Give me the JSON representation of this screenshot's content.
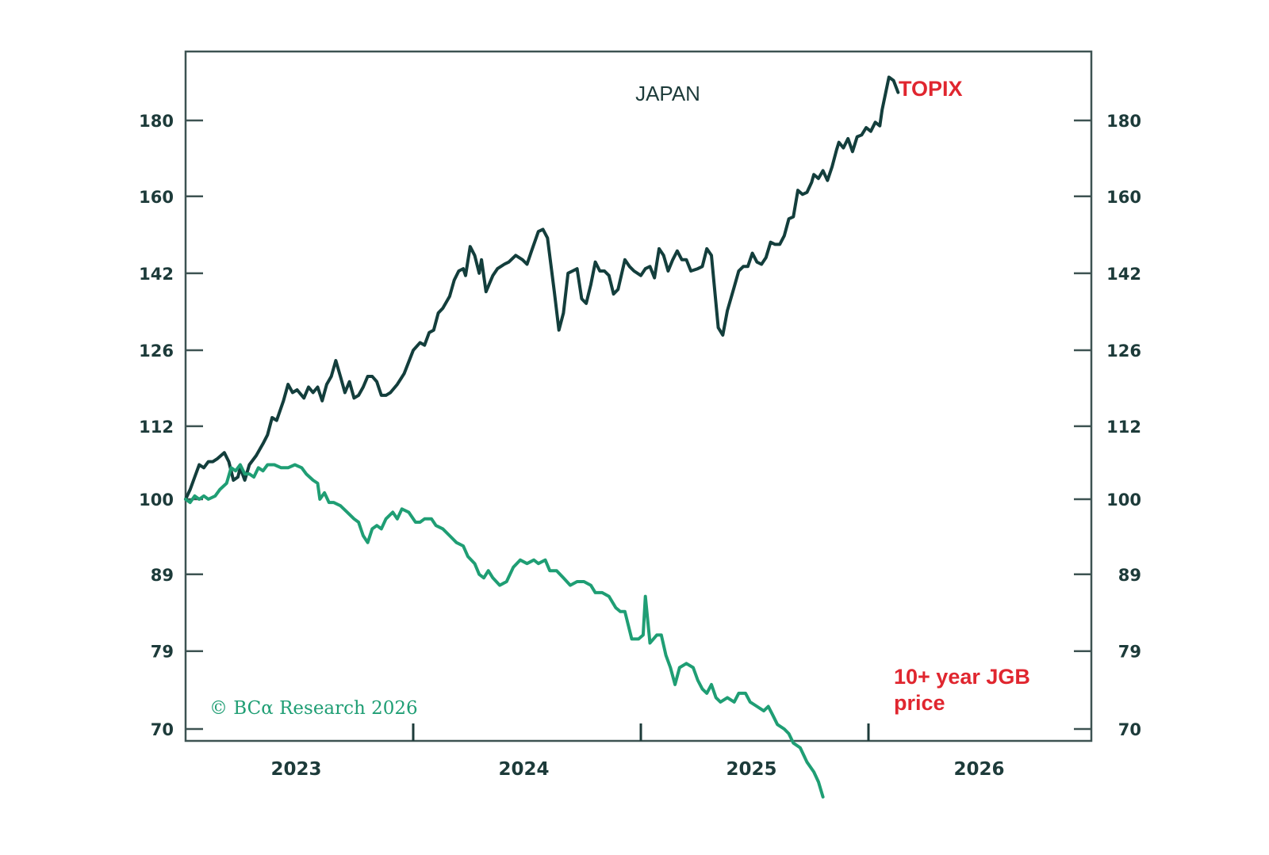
{
  "colors": {
    "axis": "#3d5352",
    "topix": "#133e3c",
    "jgb": "#1f9e74",
    "annotation": "#e0262f",
    "text": "#1d3b3a",
    "credit": "#1f9e74"
  },
  "chart_data": {
    "type": "line",
    "title": "JAPAN",
    "xlabel": "",
    "ylabel": "",
    "yscale": "log",
    "ylim": [
      70,
      198
    ],
    "xlim": [
      2023.0,
      2027.0
    ],
    "yticks": [
      70,
      79,
      89,
      100,
      112,
      126,
      142,
      160,
      180
    ],
    "ytick_labels": [
      "70",
      "79",
      "89",
      "100",
      "112",
      "126",
      "142",
      "160",
      "180"
    ],
    "xtick_year_labels": [
      "2023",
      "2024",
      "2025",
      "2026"
    ],
    "xtick_year_positions": [
      2023.5,
      2024.5,
      2025.5,
      2026.5
    ],
    "x_separators": [
      2024.0,
      2025.0,
      2026.0
    ],
    "grid": false,
    "credit": "© BCα Research 2026",
    "series": [
      {
        "name": "TOPIX",
        "label": "TOPIX",
        "points": [
          [
            2023.0,
            100.0
          ],
          [
            2023.02,
            101.5
          ],
          [
            2023.04,
            103.5
          ],
          [
            2023.06,
            105.5
          ],
          [
            2023.08,
            105.0
          ],
          [
            2023.1,
            106.0
          ],
          [
            2023.12,
            106.0
          ],
          [
            2023.14,
            106.5
          ],
          [
            2023.17,
            107.5
          ],
          [
            2023.19,
            106.0
          ],
          [
            2023.21,
            103.0
          ],
          [
            2023.23,
            103.5
          ],
          [
            2023.24,
            105.0
          ],
          [
            2023.26,
            103.0
          ],
          [
            2023.28,
            105.5
          ],
          [
            2023.31,
            107.0
          ],
          [
            2023.34,
            109.0
          ],
          [
            2023.36,
            110.5
          ],
          [
            2023.38,
            113.5
          ],
          [
            2023.4,
            113.0
          ],
          [
            2023.43,
            116.5
          ],
          [
            2023.45,
            119.5
          ],
          [
            2023.47,
            118.0
          ],
          [
            2023.49,
            118.5
          ],
          [
            2023.52,
            117.0
          ],
          [
            2023.54,
            119.0
          ],
          [
            2023.56,
            118.0
          ],
          [
            2023.58,
            119.0
          ],
          [
            2023.6,
            116.5
          ],
          [
            2023.62,
            119.5
          ],
          [
            2023.64,
            121.0
          ],
          [
            2023.66,
            124.0
          ],
          [
            2023.68,
            121.0
          ],
          [
            2023.7,
            118.0
          ],
          [
            2023.72,
            120.0
          ],
          [
            2023.74,
            117.0
          ],
          [
            2023.76,
            117.5
          ],
          [
            2023.78,
            119.0
          ],
          [
            2023.8,
            121.0
          ],
          [
            2023.82,
            121.0
          ],
          [
            2023.84,
            120.0
          ],
          [
            2023.86,
            117.5
          ],
          [
            2023.88,
            117.5
          ],
          [
            2023.9,
            118.0
          ],
          [
            2023.93,
            119.5
          ],
          [
            2023.96,
            121.5
          ],
          [
            2024.0,
            126.0
          ],
          [
            2024.03,
            127.5
          ],
          [
            2024.05,
            127.0
          ],
          [
            2024.07,
            129.5
          ],
          [
            2024.09,
            130.0
          ],
          [
            2024.11,
            133.5
          ],
          [
            2024.13,
            134.5
          ],
          [
            2024.16,
            137.0
          ],
          [
            2024.18,
            140.5
          ],
          [
            2024.2,
            142.5
          ],
          [
            2024.22,
            143.0
          ],
          [
            2024.23,
            141.5
          ],
          [
            2024.25,
            148.0
          ],
          [
            2024.27,
            146.0
          ],
          [
            2024.29,
            142.0
          ],
          [
            2024.3,
            145.0
          ],
          [
            2024.32,
            138.0
          ],
          [
            2024.35,
            141.5
          ],
          [
            2024.37,
            143.0
          ],
          [
            2024.4,
            144.0
          ],
          [
            2024.42,
            144.5
          ],
          [
            2024.45,
            146.0
          ],
          [
            2024.48,
            145.0
          ],
          [
            2024.5,
            144.0
          ],
          [
            2024.52,
            147.0
          ],
          [
            2024.55,
            151.5
          ],
          [
            2024.57,
            152.0
          ],
          [
            2024.59,
            150.0
          ],
          [
            2024.62,
            138.0
          ],
          [
            2024.64,
            130.0
          ],
          [
            2024.66,
            133.5
          ],
          [
            2024.68,
            142.0
          ],
          [
            2024.7,
            142.5
          ],
          [
            2024.72,
            143.0
          ],
          [
            2024.74,
            136.5
          ],
          [
            2024.76,
            135.5
          ],
          [
            2024.78,
            139.5
          ],
          [
            2024.8,
            144.5
          ],
          [
            2024.82,
            142.5
          ],
          [
            2024.84,
            142.5
          ],
          [
            2024.86,
            141.5
          ],
          [
            2024.88,
            137.5
          ],
          [
            2024.9,
            138.5
          ],
          [
            2024.93,
            145.0
          ],
          [
            2024.95,
            143.5
          ],
          [
            2024.97,
            142.5
          ],
          [
            2025.0,
            141.5
          ],
          [
            2025.02,
            143.0
          ],
          [
            2025.04,
            143.5
          ],
          [
            2025.06,
            141.0
          ],
          [
            2025.08,
            147.5
          ],
          [
            2025.1,
            146.0
          ],
          [
            2025.12,
            142.5
          ],
          [
            2025.14,
            145.0
          ],
          [
            2025.16,
            147.0
          ],
          [
            2025.18,
            145.0
          ],
          [
            2025.2,
            145.0
          ],
          [
            2025.22,
            142.5
          ],
          [
            2025.25,
            143.0
          ],
          [
            2025.27,
            143.5
          ],
          [
            2025.29,
            147.5
          ],
          [
            2025.31,
            146.0
          ],
          [
            2025.34,
            130.5
          ],
          [
            2025.36,
            129.0
          ],
          [
            2025.38,
            134.0
          ],
          [
            2025.41,
            139.0
          ],
          [
            2025.43,
            142.5
          ],
          [
            2025.45,
            143.5
          ],
          [
            2025.47,
            143.5
          ],
          [
            2025.49,
            146.5
          ],
          [
            2025.51,
            144.5
          ],
          [
            2025.53,
            144.0
          ],
          [
            2025.55,
            145.5
          ],
          [
            2025.57,
            149.0
          ],
          [
            2025.59,
            148.5
          ],
          [
            2025.61,
            148.5
          ],
          [
            2025.63,
            150.5
          ],
          [
            2025.65,
            154.5
          ],
          [
            2025.67,
            155.0
          ],
          [
            2025.69,
            161.5
          ],
          [
            2025.71,
            160.5
          ],
          [
            2025.73,
            161.0
          ],
          [
            2025.75,
            163.5
          ],
          [
            2025.76,
            165.5
          ],
          [
            2025.78,
            164.5
          ],
          [
            2025.8,
            166.5
          ],
          [
            2025.82,
            164.0
          ],
          [
            2025.84,
            167.5
          ],
          [
            2025.86,
            172.0
          ],
          [
            2025.87,
            174.0
          ],
          [
            2025.89,
            172.5
          ],
          [
            2025.91,
            175.0
          ],
          [
            2025.93,
            171.5
          ],
          [
            2025.95,
            175.5
          ],
          [
            2025.97,
            176.0
          ],
          [
            2025.99,
            178.0
          ],
          [
            2026.01,
            177.0
          ],
          [
            2026.03,
            179.5
          ],
          [
            2026.05,
            178.5
          ],
          [
            2026.06,
            183.0
          ],
          [
            2026.09,
            192.5
          ],
          [
            2026.11,
            191.5
          ],
          [
            2026.13,
            188.0
          ]
        ]
      },
      {
        "name": "10+ year JGB price",
        "label": "10+ year JGB\nprice",
        "points": [
          [
            2023.0,
            100.0
          ],
          [
            2023.02,
            99.5
          ],
          [
            2023.04,
            100.5
          ],
          [
            2023.06,
            100.0
          ],
          [
            2023.08,
            100.5
          ],
          [
            2023.1,
            100.0
          ],
          [
            2023.13,
            100.5
          ],
          [
            2023.15,
            101.5
          ],
          [
            2023.18,
            102.5
          ],
          [
            2023.2,
            105.0
          ],
          [
            2023.22,
            104.5
          ],
          [
            2023.24,
            105.5
          ],
          [
            2023.26,
            104.0
          ],
          [
            2023.28,
            104.0
          ],
          [
            2023.3,
            103.5
          ],
          [
            2023.32,
            105.0
          ],
          [
            2023.34,
            104.5
          ],
          [
            2023.36,
            105.5
          ],
          [
            2023.39,
            105.5
          ],
          [
            2023.42,
            105.0
          ],
          [
            2023.45,
            105.0
          ],
          [
            2023.48,
            105.5
          ],
          [
            2023.51,
            105.0
          ],
          [
            2023.53,
            104.0
          ],
          [
            2023.56,
            103.0
          ],
          [
            2023.58,
            102.5
          ],
          [
            2023.59,
            100.0
          ],
          [
            2023.61,
            101.0
          ],
          [
            2023.63,
            99.5
          ],
          [
            2023.65,
            99.5
          ],
          [
            2023.68,
            99.0
          ],
          [
            2023.71,
            98.0
          ],
          [
            2023.74,
            97.0
          ],
          [
            2023.76,
            96.5
          ],
          [
            2023.78,
            94.5
          ],
          [
            2023.8,
            93.5
          ],
          [
            2023.82,
            95.5
          ],
          [
            2023.84,
            96.0
          ],
          [
            2023.86,
            95.5
          ],
          [
            2023.88,
            97.0
          ],
          [
            2023.91,
            98.0
          ],
          [
            2023.93,
            97.0
          ],
          [
            2023.95,
            98.5
          ],
          [
            2023.98,
            98.0
          ],
          [
            2024.01,
            96.5
          ],
          [
            2024.03,
            96.5
          ],
          [
            2024.05,
            97.0
          ],
          [
            2024.08,
            97.0
          ],
          [
            2024.1,
            96.0
          ],
          [
            2024.13,
            95.5
          ],
          [
            2024.16,
            94.5
          ],
          [
            2024.19,
            93.5
          ],
          [
            2024.22,
            93.0
          ],
          [
            2024.24,
            91.5
          ],
          [
            2024.27,
            90.5
          ],
          [
            2024.29,
            89.0
          ],
          [
            2024.31,
            88.5
          ],
          [
            2024.33,
            89.5
          ],
          [
            2024.35,
            88.5
          ],
          [
            2024.38,
            87.5
          ],
          [
            2024.41,
            88.0
          ],
          [
            2024.44,
            90.0
          ],
          [
            2024.47,
            91.0
          ],
          [
            2024.5,
            90.5
          ],
          [
            2024.53,
            91.0
          ],
          [
            2024.55,
            90.5
          ],
          [
            2024.58,
            91.0
          ],
          [
            2024.6,
            89.5
          ],
          [
            2024.63,
            89.5
          ],
          [
            2024.66,
            88.5
          ],
          [
            2024.69,
            87.5
          ],
          [
            2024.72,
            88.0
          ],
          [
            2024.75,
            88.0
          ],
          [
            2024.78,
            87.5
          ],
          [
            2024.8,
            86.5
          ],
          [
            2024.83,
            86.5
          ],
          [
            2024.86,
            86.0
          ],
          [
            2024.89,
            84.5
          ],
          [
            2024.91,
            84.0
          ],
          [
            2024.93,
            84.0
          ],
          [
            2024.96,
            80.5
          ],
          [
            2024.99,
            80.5
          ],
          [
            2025.01,
            81.0
          ],
          [
            2025.02,
            86.0
          ],
          [
            2025.04,
            80.0
          ],
          [
            2025.07,
            81.0
          ],
          [
            2025.09,
            81.0
          ],
          [
            2025.11,
            78.5
          ],
          [
            2025.13,
            77.0
          ],
          [
            2025.15,
            75.0
          ],
          [
            2025.17,
            77.0
          ],
          [
            2025.2,
            77.5
          ],
          [
            2025.23,
            77.0
          ],
          [
            2025.25,
            75.5
          ],
          [
            2025.27,
            74.5
          ],
          [
            2025.29,
            74.0
          ],
          [
            2025.31,
            75.0
          ],
          [
            2025.33,
            73.5
          ],
          [
            2025.35,
            73.0
          ],
          [
            2025.38,
            73.5
          ],
          [
            2025.41,
            73.0
          ],
          [
            2025.43,
            74.0
          ],
          [
            2025.46,
            74.0
          ],
          [
            2025.48,
            73.0
          ],
          [
            2025.51,
            72.5
          ],
          [
            2025.54,
            72.0
          ],
          [
            2025.56,
            72.5
          ],
          [
            2025.58,
            71.5
          ],
          [
            2025.6,
            70.5
          ],
          [
            2025.63,
            70.0
          ],
          [
            2025.65,
            69.5
          ],
          [
            2025.67,
            68.5
          ],
          [
            2025.7,
            68.0
          ],
          [
            2025.73,
            66.5
          ],
          [
            2025.76,
            65.5
          ],
          [
            2025.78,
            64.5
          ],
          [
            2025.8,
            63.0
          ]
        ]
      }
    ]
  }
}
